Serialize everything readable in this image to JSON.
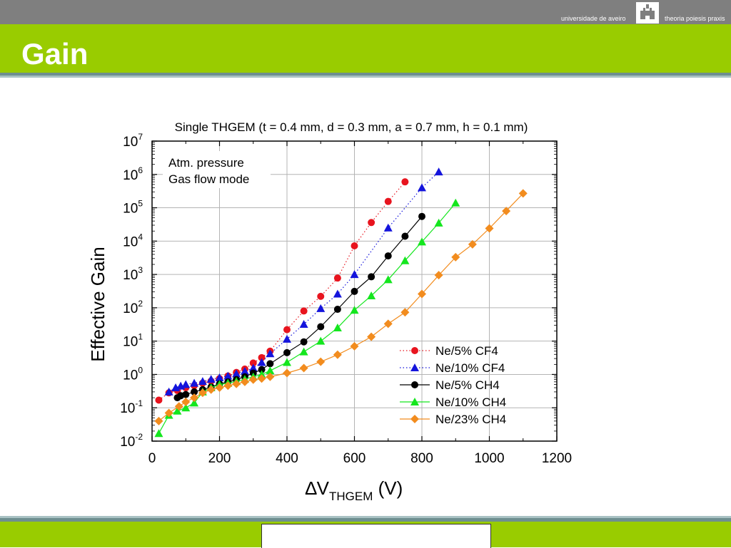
{
  "slide": {
    "title": "Gain",
    "university": "universidade de aveiro",
    "motto": "theoria poiesis praxis"
  },
  "colors": {
    "top_bar": "#7f7f7f",
    "title_bar": "#99cc00",
    "stripe": "#6e8f90"
  },
  "chart_data": {
    "type": "scatter",
    "title": "Single THGEM (t = 0.4 mm, d = 0.3 mm, a = 0.7 mm, h = 0.1 mm)",
    "ylabel": "Effective Gain",
    "xlabel_prefix": "∆V",
    "xlabel_sub": "THGEM",
    "xlabel_suffix": " (V)",
    "annotations": [
      "Atm. pressure",
      "Gas flow mode"
    ],
    "xlim": [
      0,
      1200
    ],
    "ylim": [
      0.01,
      10000000
    ],
    "yscale": "log",
    "x_ticks": [
      0,
      200,
      400,
      600,
      800,
      1000,
      1200
    ],
    "y_ticks": [
      {
        "base": "10",
        "exp": "-2",
        "value": 0.01
      },
      {
        "base": "10",
        "exp": "-1",
        "value": 0.1
      },
      {
        "base": "10",
        "exp": "0",
        "value": 1
      },
      {
        "base": "10",
        "exp": "1",
        "value": 10
      },
      {
        "base": "10",
        "exp": "2",
        "value": 100
      },
      {
        "base": "10",
        "exp": "3",
        "value": 1000
      },
      {
        "base": "10",
        "exp": "4",
        "value": 10000
      },
      {
        "base": "10",
        "exp": "5",
        "value": 100000
      },
      {
        "base": "10",
        "exp": "6",
        "value": 1000000
      },
      {
        "base": "10",
        "exp": "7",
        "value": 10000000
      }
    ],
    "grid": true,
    "legend_position": "bottom-right",
    "series": [
      {
        "name": "Ne/5% CF4",
        "color": "#e8141e",
        "marker": "circle",
        "line": "dotted",
        "points": [
          [
            20,
            0.17
          ],
          [
            50,
            0.28
          ],
          [
            75,
            0.33
          ],
          [
            100,
            0.4
          ],
          [
            125,
            0.46
          ],
          [
            150,
            0.55
          ],
          [
            175,
            0.63
          ],
          [
            200,
            0.75
          ],
          [
            225,
            0.9
          ],
          [
            250,
            1.15
          ],
          [
            275,
            1.45
          ],
          [
            300,
            2.2
          ],
          [
            325,
            3.2
          ],
          [
            350,
            5
          ],
          [
            400,
            22
          ],
          [
            450,
            80
          ],
          [
            500,
            220
          ],
          [
            550,
            780
          ],
          [
            600,
            7200
          ],
          [
            650,
            36000
          ],
          [
            700,
            155000
          ],
          [
            750,
            600000
          ]
        ]
      },
      {
        "name": "Ne/10% CF4",
        "color": "#1414dc",
        "marker": "triangle",
        "line": "dotted",
        "points": [
          [
            50,
            0.3
          ],
          [
            70,
            0.4
          ],
          [
            85,
            0.45
          ],
          [
            100,
            0.5
          ],
          [
            125,
            0.55
          ],
          [
            150,
            0.62
          ],
          [
            175,
            0.72
          ],
          [
            200,
            0.8
          ],
          [
            225,
            0.9
          ],
          [
            250,
            1.05
          ],
          [
            275,
            1.25
          ],
          [
            300,
            1.55
          ],
          [
            325,
            2.3
          ],
          [
            350,
            4.2
          ],
          [
            400,
            11.5
          ],
          [
            450,
            32
          ],
          [
            500,
            95
          ],
          [
            550,
            260
          ],
          [
            600,
            1000
          ],
          [
            700,
            25000
          ],
          [
            800,
            400000
          ],
          [
            850,
            1200000
          ]
        ]
      },
      {
        "name": "Ne/5% CH4",
        "color": "#000000",
        "marker": "circle",
        "line": "solid",
        "points": [
          [
            75,
            0.2
          ],
          [
            85,
            0.23
          ],
          [
            100,
            0.25
          ],
          [
            125,
            0.3
          ],
          [
            150,
            0.35
          ],
          [
            175,
            0.42
          ],
          [
            200,
            0.52
          ],
          [
            225,
            0.6
          ],
          [
            250,
            0.7
          ],
          [
            275,
            0.85
          ],
          [
            300,
            1.1
          ],
          [
            325,
            1.4
          ],
          [
            350,
            2.1
          ],
          [
            400,
            4.5
          ],
          [
            450,
            9.5
          ],
          [
            500,
            27
          ],
          [
            550,
            90
          ],
          [
            600,
            310
          ],
          [
            650,
            850
          ],
          [
            700,
            3600
          ],
          [
            750,
            14000
          ],
          [
            800,
            55000
          ]
        ]
      },
      {
        "name": "Ne/10% CH4",
        "color": "#14e61e",
        "marker": "triangle",
        "line": "solid",
        "points": [
          [
            20,
            0.017
          ],
          [
            50,
            0.06
          ],
          [
            75,
            0.08
          ],
          [
            100,
            0.1
          ],
          [
            125,
            0.14
          ],
          [
            150,
            0.3
          ],
          [
            175,
            0.4
          ],
          [
            200,
            0.5
          ],
          [
            225,
            0.55
          ],
          [
            250,
            0.62
          ],
          [
            275,
            0.72
          ],
          [
            300,
            0.85
          ],
          [
            325,
            1.0
          ],
          [
            350,
            1.3
          ],
          [
            400,
            2.3
          ],
          [
            450,
            4.8
          ],
          [
            500,
            10
          ],
          [
            550,
            25
          ],
          [
            600,
            85
          ],
          [
            650,
            230
          ],
          [
            700,
            700
          ],
          [
            750,
            2600
          ],
          [
            800,
            9500
          ],
          [
            850,
            35000
          ],
          [
            900,
            140000
          ]
        ]
      },
      {
        "name": "Ne/23% CH4",
        "color": "#f28c1e",
        "marker": "diamond",
        "line": "solid",
        "points": [
          [
            20,
            0.04
          ],
          [
            50,
            0.07
          ],
          [
            80,
            0.11
          ],
          [
            100,
            0.15
          ],
          [
            125,
            0.2
          ],
          [
            150,
            0.28
          ],
          [
            175,
            0.35
          ],
          [
            200,
            0.4
          ],
          [
            225,
            0.46
          ],
          [
            250,
            0.52
          ],
          [
            275,
            0.6
          ],
          [
            300,
            0.7
          ],
          [
            325,
            0.75
          ],
          [
            350,
            0.85
          ],
          [
            400,
            1.1
          ],
          [
            450,
            1.55
          ],
          [
            500,
            2.4
          ],
          [
            550,
            3.9
          ],
          [
            600,
            7
          ],
          [
            650,
            13.5
          ],
          [
            700,
            33
          ],
          [
            750,
            73
          ],
          [
            800,
            260
          ],
          [
            850,
            950
          ],
          [
            900,
            3300
          ],
          [
            950,
            8000
          ],
          [
            1000,
            24000
          ],
          [
            1050,
            80000
          ],
          [
            1100,
            270000
          ]
        ]
      }
    ]
  }
}
